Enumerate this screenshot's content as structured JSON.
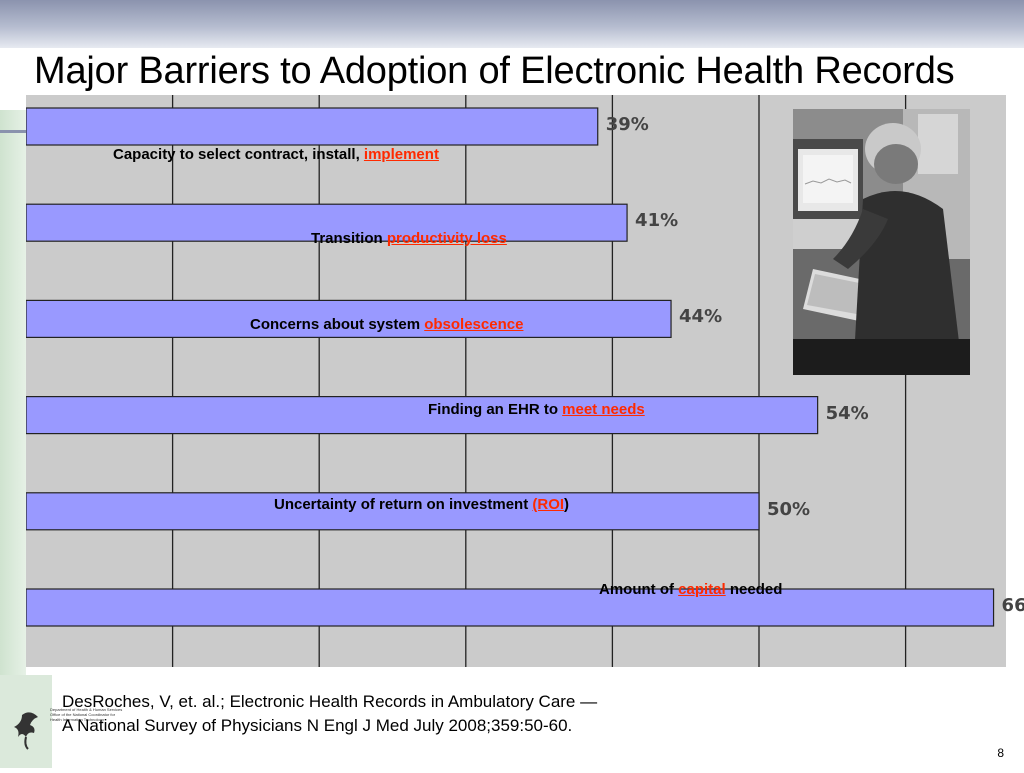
{
  "title": "Major Barriers to Adoption of Electronic Health Records",
  "chart_data": {
    "type": "bar",
    "orientation": "horizontal",
    "title": "Major Barriers to Adoption of Electronic Health Records",
    "categories": [
      "Capacity to select contract, install, implement",
      "Transition productivity loss",
      "Concerns about system obsolescence",
      "Finding an EHR to meet needs",
      "Uncertainty of return on investment (ROI)",
      "Amount of capital needed"
    ],
    "values": [
      39,
      41,
      44,
      54,
      50,
      66
    ],
    "data_labels": [
      "39%",
      "41%",
      "44%",
      "54%",
      "50%",
      "66%"
    ],
    "xlim": [
      0,
      70
    ],
    "grid_x": [
      10,
      20,
      30,
      40,
      50,
      60
    ],
    "xlabel": "",
    "ylabel": "",
    "grid": true,
    "bar_color": "#9999ff",
    "label_keyword_color": "#ff2a00"
  },
  "labels": [
    {
      "pre": "Capacity to select contract, install, ",
      "kw": "implement",
      "post": ""
    },
    {
      "pre": "Transition ",
      "kw": "productivity loss",
      "post": ""
    },
    {
      "pre": "Concerns about system ",
      "kw": "obsolescence",
      "post": ""
    },
    {
      "pre": "Finding an EHR to ",
      "kw": "meet needs",
      "post": ""
    },
    {
      "pre": "Uncertainty of return on investment ",
      "kw": "(ROI",
      "post": ")"
    },
    {
      "pre": "Amount of ",
      "kw": "capital",
      "post": " needed"
    }
  ],
  "citation": {
    "line1": "DesRoches, V, et. al.; Electronic Health Records in Ambulatory Care —",
    "line2": "A National Survey of Physicians N Engl J Med July 2008;359:50-60."
  },
  "logo": {
    "line1": "Department of Health & Human Services",
    "line2": "Office of the National Coordinator for",
    "line3": "Health Information Technology"
  },
  "page_number": "8"
}
